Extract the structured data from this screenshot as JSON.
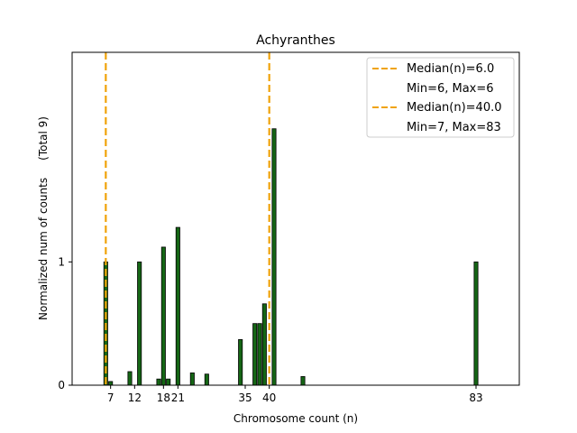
{
  "chart_data": {
    "type": "bar",
    "title": "Achyranthes",
    "xlabel": "Chromosome count (n)",
    "ylabel": "Normalized num of counts     (Total 9)",
    "xlim": [
      -1,
      92
    ],
    "ylim": [
      0,
      2.7
    ],
    "xticks": [
      7,
      12,
      18,
      21,
      35,
      40,
      83
    ],
    "yticks": [
      {
        "value": 0,
        "label": "0"
      },
      {
        "value": 1,
        "label": "1"
      }
    ],
    "bar_color": "#156615",
    "median_line_color": "#f0a30a",
    "bars": [
      {
        "x": 6,
        "value": 1.0
      },
      {
        "x": 7,
        "value": 0.03
      },
      {
        "x": 11,
        "value": 0.11
      },
      {
        "x": 13,
        "value": 1.0
      },
      {
        "x": 17,
        "value": 0.05
      },
      {
        "x": 18,
        "value": 1.12
      },
      {
        "x": 19,
        "value": 0.05
      },
      {
        "x": 21,
        "value": 1.28
      },
      {
        "x": 24,
        "value": 0.1
      },
      {
        "x": 27,
        "value": 0.09
      },
      {
        "x": 34,
        "value": 0.37
      },
      {
        "x": 37,
        "value": 0.5
      },
      {
        "x": 38,
        "value": 0.5
      },
      {
        "x": 39,
        "value": 0.66
      },
      {
        "x": 41,
        "value": 2.08
      },
      {
        "x": 47,
        "value": 0.07
      },
      {
        "x": 83,
        "value": 1.0
      }
    ],
    "medians": [
      {
        "x": 6.0,
        "label": "Median(n)=6.0",
        "range_label": "Min=6, Max=6"
      },
      {
        "x": 40.0,
        "label": "Median(n)=40.0",
        "range_label": "Min=7, Max=83"
      }
    ],
    "legend_position": "top-right"
  }
}
